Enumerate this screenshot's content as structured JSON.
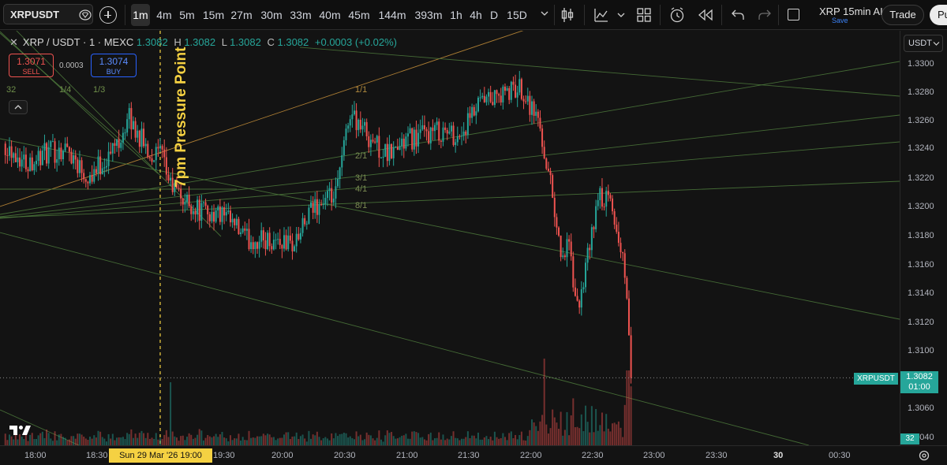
{
  "toolbar": {
    "symbol": "XRPUSDT",
    "intervals": [
      "1m",
      "4m",
      "5m",
      "15m",
      "27m",
      "30m",
      "33m",
      "40m",
      "45m",
      "144m",
      "393m",
      "1h",
      "4h",
      "D",
      "15D"
    ],
    "active_interval": "1m",
    "layout_name": "XRP 15min AI",
    "layout_save": "Save",
    "trade_label": "Trade",
    "publish_label": "Pu"
  },
  "legend": {
    "title": "XRP / USDT · 1 · MEXC",
    "open_value": "1.3082",
    "high_label": "H",
    "high_value": "1.3082",
    "low_label": "L",
    "low_value": "1.3082",
    "close_label": "C",
    "close_value": "1.3082",
    "change": "+0.0003 (+0.02%)"
  },
  "order_buttons": {
    "sell_price": "1.3071",
    "sell_label": "SELL",
    "spread": "0.0003",
    "buy_price": "1.3074",
    "buy_label": "BUY"
  },
  "annotation": {
    "pressure_text": "7pm Pressure Point",
    "crosshair_time": "Sun 29 Mar '26   19:00"
  },
  "fan_labels": {
    "left": [
      "32",
      "1/4",
      "1/3"
    ],
    "right": [
      "1/1",
      "2/1",
      "3/1",
      "4/1",
      "8/1"
    ]
  },
  "price_axis": {
    "currency": "USDT",
    "ticks": [
      "1.3300",
      "1.3280",
      "1.3260",
      "1.3240",
      "1.3220",
      "1.3200",
      "1.3180",
      "1.3160",
      "1.3140",
      "1.3120",
      "1.3100",
      "1.3060",
      "1.3040"
    ],
    "last_symbol": "XRPUSDT",
    "last_price": "1.3082",
    "countdown": "01:00",
    "volume_label": "32"
  },
  "time_axis": {
    "ticks": [
      "18:00",
      "18:30",
      "19:30",
      "20:00",
      "20:30",
      "21:00",
      "21:30",
      "22:00",
      "22:30",
      "23:00",
      "23:30",
      "30",
      "00:30"
    ]
  },
  "colors": {
    "up": "#26a69a",
    "down": "#ef5350",
    "highlight": "#f5d142",
    "fan_green": "#4e7a3c",
    "fan_orange": "#c8913a"
  },
  "chart_data": {
    "type": "candlestick",
    "title": "XRP / USDT · 1 · MEXC",
    "xlabel": "",
    "ylabel": "",
    "ylim": [
      1.303,
      1.3318
    ],
    "x_range": [
      "17:45",
      "00:45"
    ],
    "close_path": [
      [
        "17:45",
        1.3245
      ],
      [
        "17:55",
        1.3232
      ],
      [
        "18:05",
        1.3238
      ],
      [
        "18:15",
        1.3242
      ],
      [
        "18:25",
        1.3222
      ],
      [
        "18:35",
        1.3236
      ],
      [
        "18:45",
        1.3262
      ],
      [
        "18:55",
        1.3238
      ],
      [
        "19:00",
        1.3238
      ],
      [
        "19:05",
        1.3216
      ],
      [
        "19:12",
        1.3205
      ],
      [
        "19:20",
        1.3198
      ],
      [
        "19:30",
        1.3195
      ],
      [
        "19:42",
        1.3178
      ],
      [
        "19:55",
        1.3178
      ],
      [
        "20:05",
        1.3175
      ],
      [
        "20:15",
        1.3202
      ],
      [
        "20:25",
        1.3208
      ],
      [
        "20:32",
        1.3268
      ],
      [
        "20:40",
        1.3252
      ],
      [
        "20:50",
        1.3236
      ],
      [
        "21:00",
        1.3248
      ],
      [
        "21:15",
        1.3254
      ],
      [
        "21:25",
        1.325
      ],
      [
        "21:35",
        1.3272
      ],
      [
        "21:45",
        1.3278
      ],
      [
        "21:55",
        1.3284
      ],
      [
        "22:03",
        1.3262
      ],
      [
        "22:10",
        1.321
      ],
      [
        "22:14",
        1.3168
      ],
      [
        "22:18",
        1.3172
      ],
      [
        "22:22",
        1.3128
      ],
      [
        "22:28",
        1.3172
      ],
      [
        "22:32",
        1.3208
      ],
      [
        "22:38",
        1.3204
      ],
      [
        "22:42",
        1.3178
      ],
      [
        "22:45",
        1.3158
      ],
      [
        "22:48",
        1.3082
      ]
    ],
    "last": 1.3082
  }
}
